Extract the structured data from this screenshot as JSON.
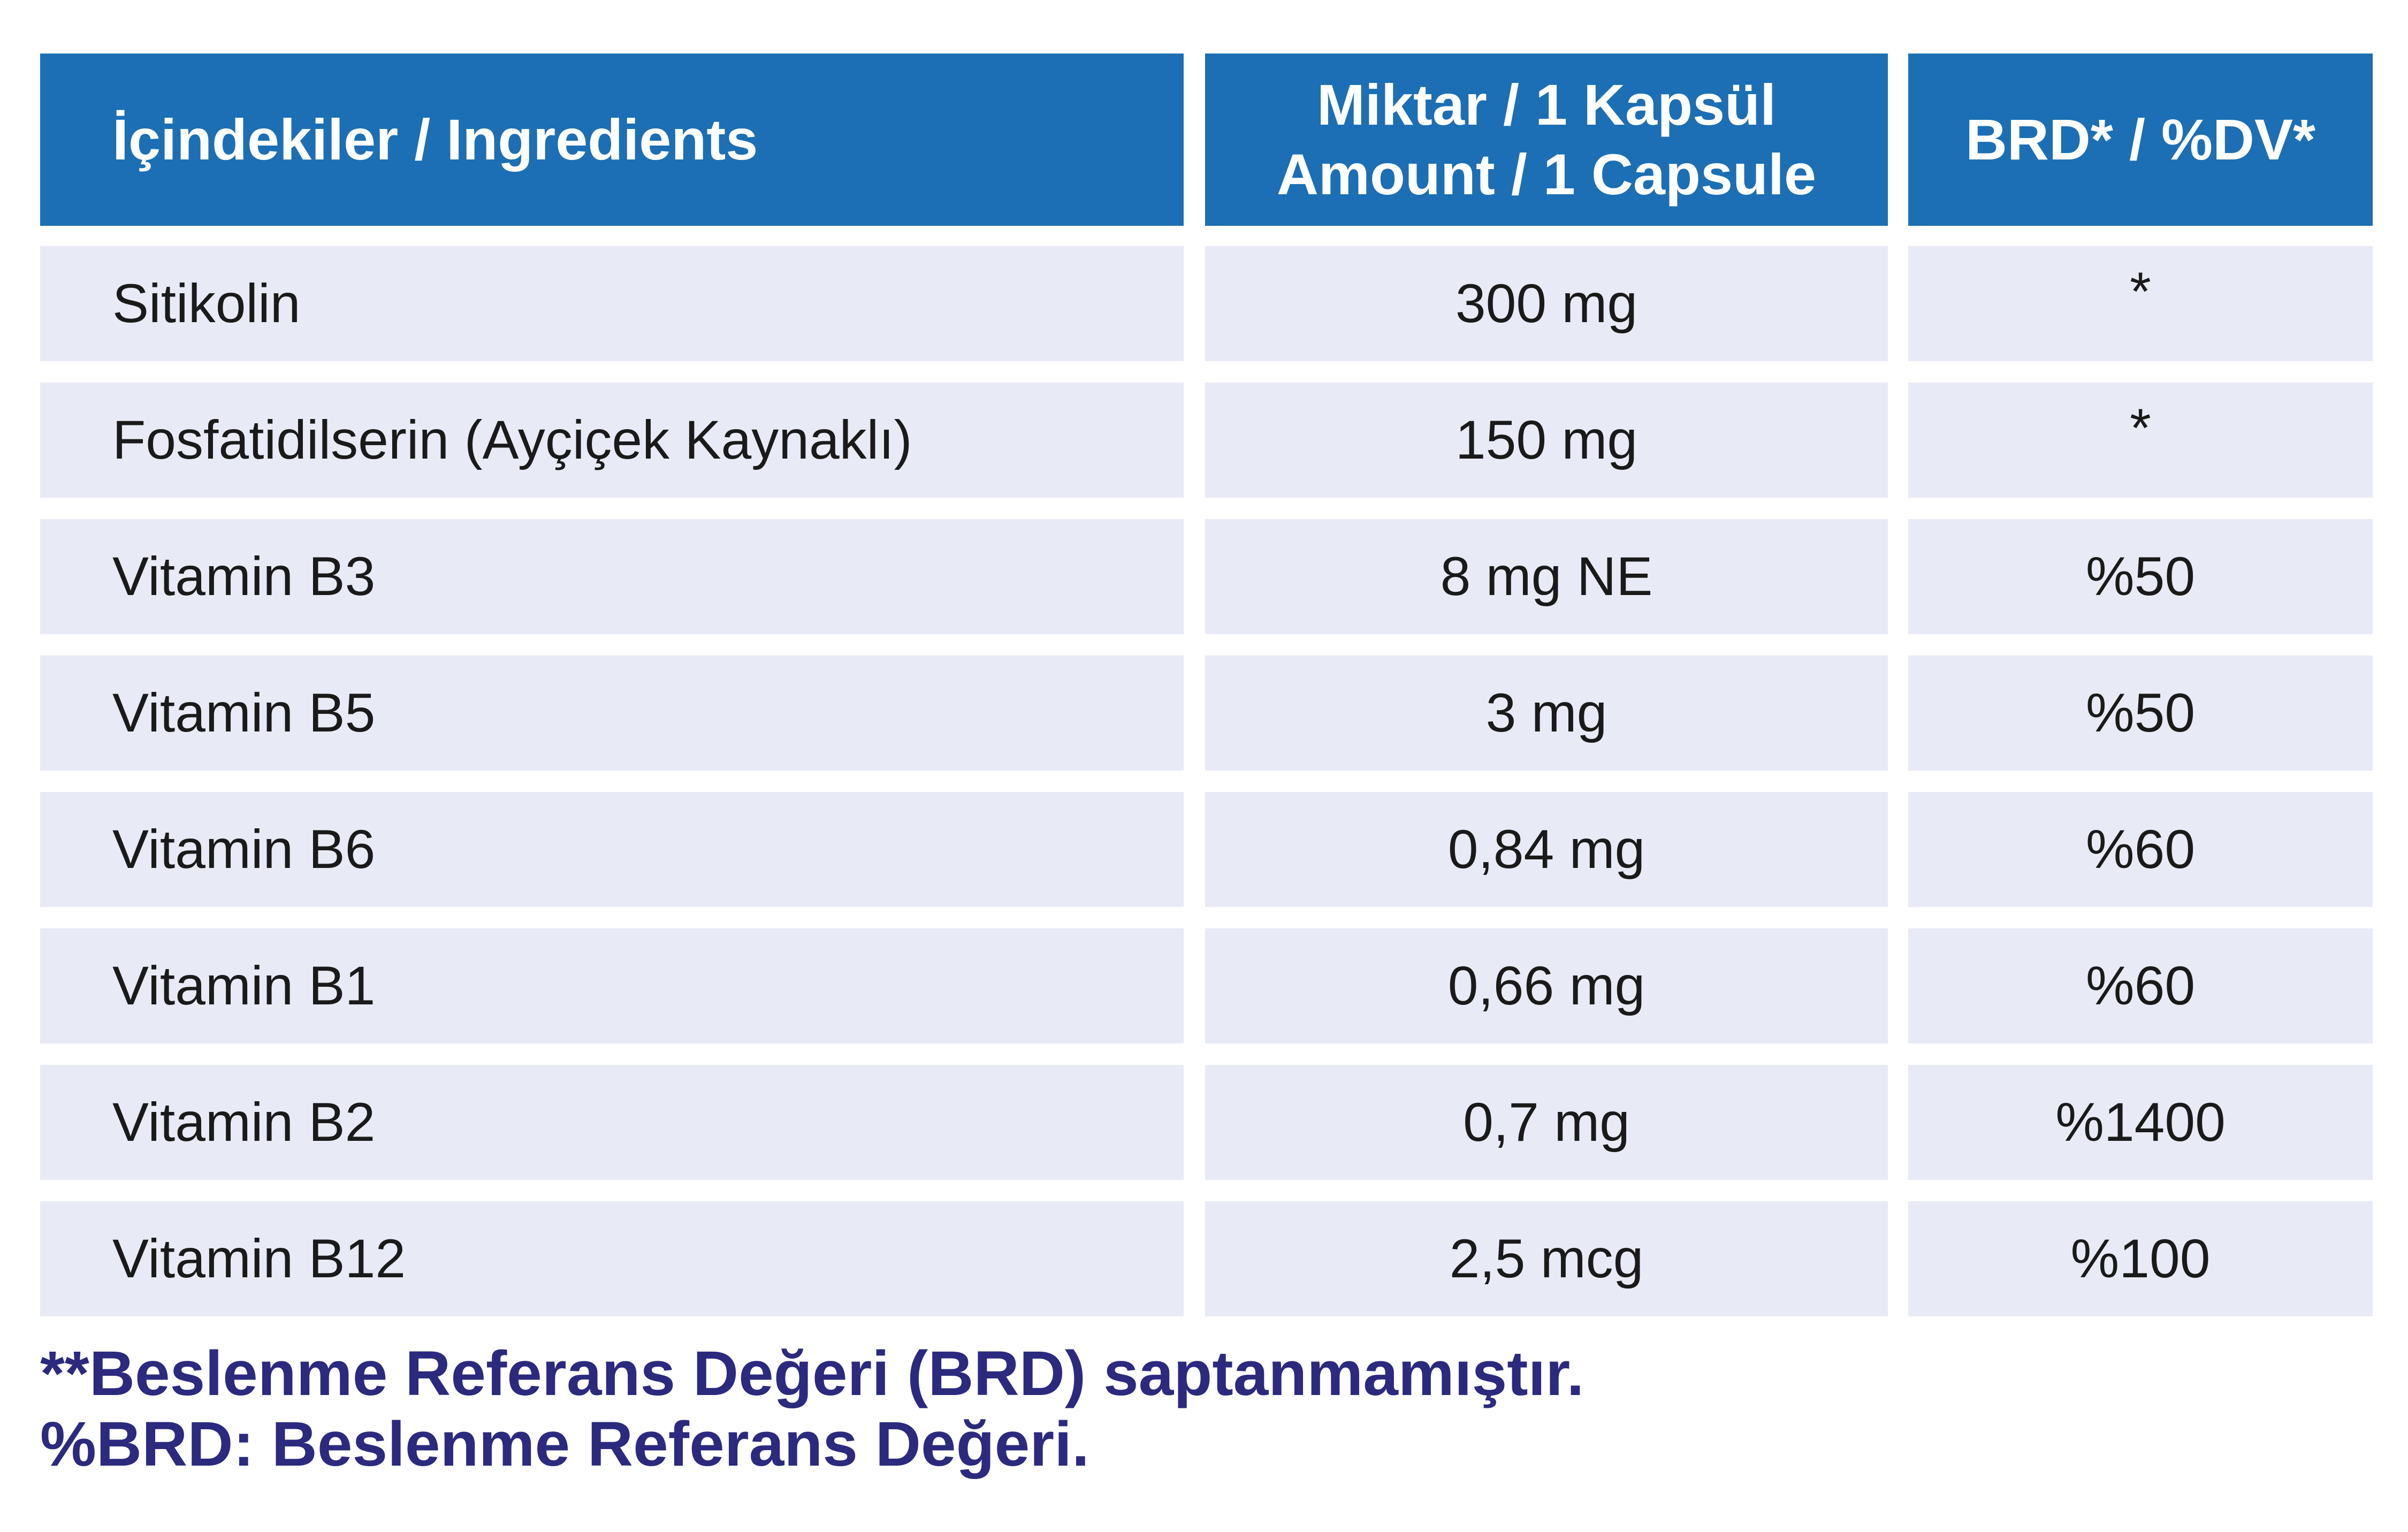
{
  "table": {
    "headers": {
      "ingredients": "İçindekiler / Ingredients",
      "amount_line1": "Miktar / 1 Kapsül",
      "amount_line2": "Amount / 1 Capsule",
      "dv": "BRD* / %DV*"
    },
    "rows": [
      {
        "name": "Sitikolin",
        "amount": "300 mg",
        "dv": "*"
      },
      {
        "name": "Fosfatidilserin (Ayçiçek Kaynaklı)",
        "amount": "150 mg",
        "dv": "*"
      },
      {
        "name": "Vitamin B3",
        "amount": "8 mg NE",
        "dv": "%50"
      },
      {
        "name": "Vitamin B5",
        "amount": "3 mg",
        "dv": "%50"
      },
      {
        "name": "Vitamin B6",
        "amount": "0,84 mg",
        "dv": "%60"
      },
      {
        "name": "Vitamin B1",
        "amount": "0,66 mg",
        "dv": "%60"
      },
      {
        "name": "Vitamin B2",
        "amount": "0,7 mg",
        "dv": "%1400"
      },
      {
        "name": "Vitamin B12",
        "amount": "2,5 mcg",
        "dv": "%100"
      }
    ]
  },
  "footnotes": {
    "line1": "**Beslenme Referans Değeri (BRD) saptanmamıştır.",
    "line2": "%BRD: Beslenme Referans Değeri."
  },
  "colors": {
    "header_bg": "#1c6fb4",
    "row_bg": "#e8eaf5",
    "footnote_text": "#2b2a7e"
  }
}
